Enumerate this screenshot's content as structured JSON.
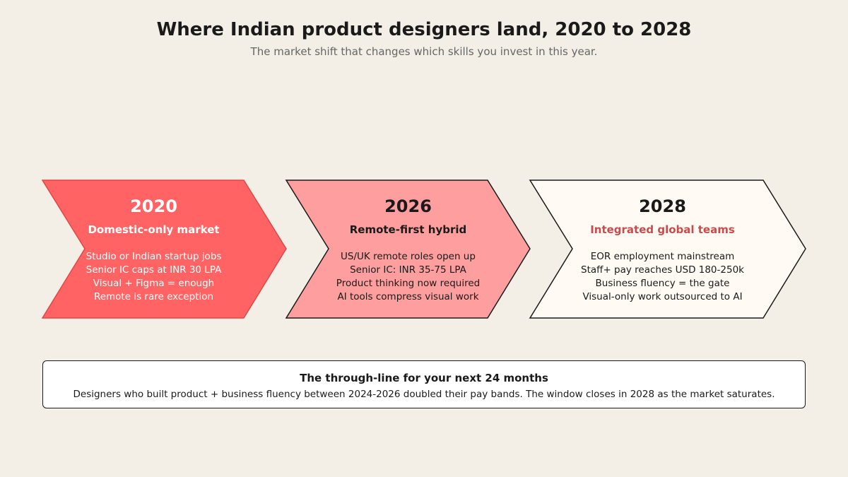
{
  "header": {
    "title": "Where Indian product designers land, 2020 to 2028",
    "subtitle": "The market shift that changes which skills you invest in this year."
  },
  "stages": [
    {
      "year": "2020",
      "heading": "Domestic-only market",
      "points": [
        "Studio or Indian startup jobs",
        "Senior IC caps at INR 30 LPA",
        "Visual + Figma = enough",
        "Remote is rare exception"
      ],
      "fill": "#ff6363",
      "stroke": "#e04848"
    },
    {
      "year": "2026",
      "heading": "Remote-first hybrid",
      "points": [
        "US/UK remote roles open up",
        "Senior IC: INR 35-75 LPA",
        "Product thinking now required",
        "AI tools compress visual work"
      ],
      "fill": "#ff9e9e",
      "stroke": "#1a1a1a"
    },
    {
      "year": "2028",
      "heading": "Integrated global teams",
      "points": [
        "EOR employment mainstream",
        "Staff+ pay reaches USD 180-250k",
        "Business fluency = the gate",
        "Visual-only work outsourced to AI"
      ],
      "fill": "#fffbf4",
      "stroke": "#1a1a1a",
      "heading_color": "#cc4a4a"
    }
  ],
  "callout": {
    "title": "The through-line for your next 24 months",
    "body": "Designers who built product + business fluency between 2024-2026 doubled their pay bands. The window closes in 2028 as the market saturates."
  },
  "colors": {
    "background": "#f3efe7",
    "accent_red": "#ff6363",
    "accent_pink": "#ff9e9e",
    "accent_text": "#cc4a4a"
  }
}
